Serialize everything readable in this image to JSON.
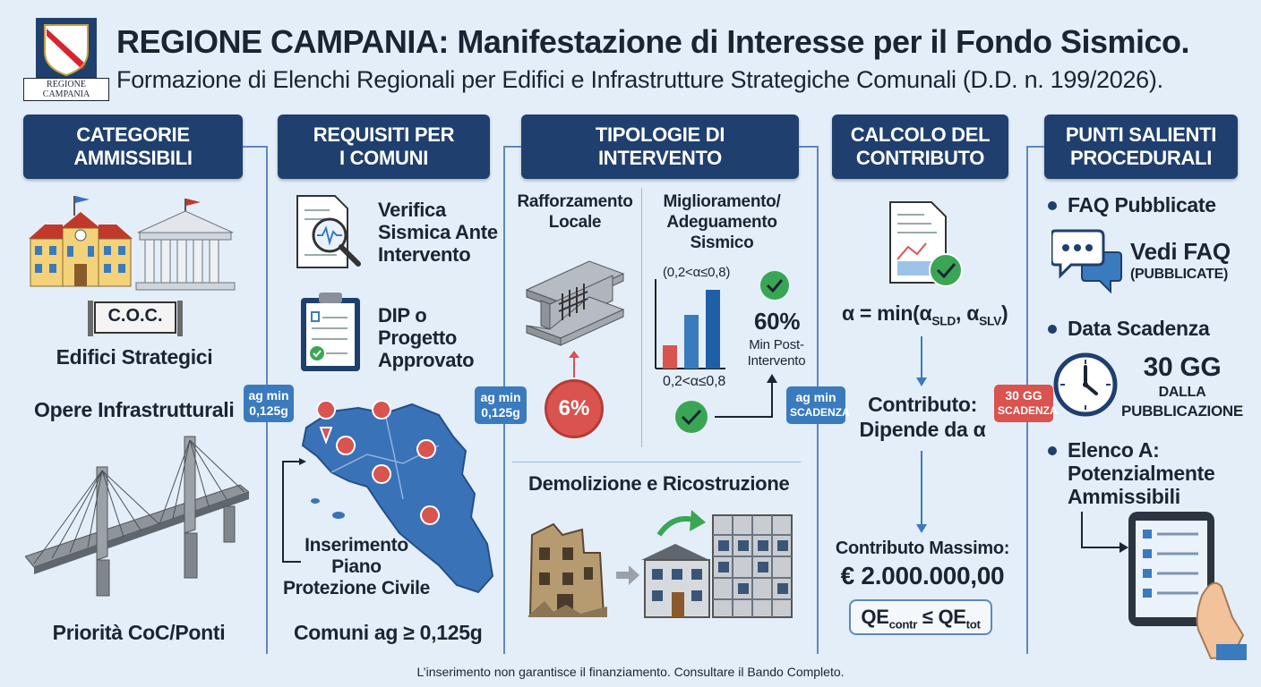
{
  "header": {
    "title": "REGIONE CAMPANIA: Manifestazione di Interesse per il Fondo Sismico.",
    "subtitle": "Formazione di Elenchi Regionali per Edifici e Infrastrutture Strategiche Comunali (D.D. n. 199/2026).",
    "logo_caption": "REGIONE CAMPANIA"
  },
  "col1": {
    "heading_l1": "CATEGORIE",
    "heading_l2": "AMMISSIBILI",
    "coc_sign": "C.O.C.",
    "edifici": "Edifici Strategici",
    "opere": "Opere Infrastrutturali",
    "priorita": "Priorità CoC/Ponti"
  },
  "col2": {
    "heading_l1": "REQUISITI PER",
    "heading_l2": "I COMUNI",
    "verifica_l1": "Verifica",
    "verifica_l2": "Sismica Ante",
    "verifica_l3": "Intervento",
    "dip_l1": "DIP o",
    "dip_l2": "Progetto",
    "dip_l3": "Approvato",
    "piano_l1": "Inserimento",
    "piano_l2": "Piano",
    "piano_l3": "Protezione Civile",
    "comuni": "Comuni ag ≥ 0,125g"
  },
  "col3": {
    "heading_l1": "TIPOLOGIE DI",
    "heading_l2": "INTERVENTO",
    "rafforzamento_l1": "Rafforzamento",
    "rafforzamento_l2": "Locale",
    "miglioramento_l1": "Miglioramento/",
    "miglioramento_l2": "Adeguamento",
    "miglioramento_l3": "Sismico",
    "range_top": "(0,2<α≤0,8)",
    "range_bottom": "0,2<α≤0,8",
    "pct60": "60%",
    "min_post_l1": "Min Post-",
    "min_post_l2": "Intervento",
    "pct6": "6%",
    "demolizione": "Demolizione e Ricostruzione"
  },
  "col4": {
    "heading_l1": "CALCOLO DEL",
    "heading_l2": "CONTRIBUTO",
    "formula": "α = min(α",
    "sub_sld": "SLD",
    "formula_mid": ", α",
    "sub_slv": "SLV",
    "formula_end": ")",
    "contributo_l1": "Contributo:",
    "contributo_l2": "Dipende da α",
    "massimo_l1": "Contributo Massimo:",
    "massimo_l2": "€ 2.000.000,00",
    "qe_a": "QE",
    "qe_sub_a": "contr",
    "qe_op": " ≤ QE",
    "qe_sub_b": "tot"
  },
  "col5": {
    "heading_l1": "PUNTI SALIENTI",
    "heading_l2": "PROCEDURALI",
    "faq": "FAQ Pubblicate",
    "vedi_faq": "Vedi FAQ",
    "pubblicate": "(PUBBLICATE)",
    "data_scadenza": "Data Scadenza",
    "gg30": "30 GG",
    "dalla": "DALLA",
    "pubblicazione": "PUBBLICAZIONE",
    "elenco_l1": "Elenco A:",
    "elenco_l2": "Potenzialmente",
    "elenco_l3": "Ammissibili"
  },
  "badges": {
    "b1_l1": "ag min",
    "b1_l2": "0,125g",
    "b2_l1": "ag min",
    "b2_l2": "0,125g",
    "b3_l1": "ag min",
    "b3_l2": "SCADENZA",
    "b4_l1": "30 GG",
    "b4_l2": "SCADENZA"
  },
  "footer": "L’inserimento non garantisce il finanziamento. Consultare il Bando Completo.",
  "colors": {
    "navy": "#1f3f6e",
    "accent_blue": "#3a7bbd",
    "red": "#d9534f",
    "green": "#3aa655",
    "background": "#e4eef8"
  },
  "icons": [
    "region-crest-icon",
    "school-building-icon",
    "town-hall-icon",
    "bridge-icon",
    "seismic-report-icon",
    "clipboard-check-icon",
    "campania-map-icon",
    "steel-beam-icon",
    "bar-chart-icon",
    "check-icon",
    "building-ruin-icon",
    "new-building-icon",
    "document-chart-icon",
    "chat-bubbles-icon",
    "clock-icon",
    "tablet-list-icon"
  ]
}
